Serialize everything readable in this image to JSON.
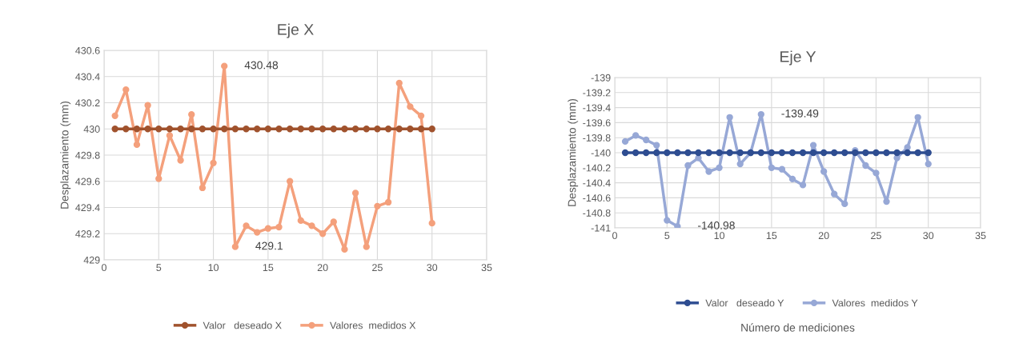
{
  "chart_data": [
    {
      "type": "line",
      "title": "Eje X",
      "ylabel": "Desplazamiento (mm)",
      "x": [
        1,
        2,
        3,
        4,
        5,
        6,
        7,
        8,
        9,
        10,
        11,
        12,
        13,
        14,
        15,
        16,
        17,
        18,
        19,
        20,
        21,
        22,
        23,
        24,
        25,
        26,
        27,
        28,
        29,
        30
      ],
      "series": [
        {
          "name": "Valor   deseado X",
          "color": "#a0522d",
          "values": [
            430,
            430,
            430,
            430,
            430,
            430,
            430,
            430,
            430,
            430,
            430,
            430,
            430,
            430,
            430,
            430,
            430,
            430,
            430,
            430,
            430,
            430,
            430,
            430,
            430,
            430,
            430,
            430,
            430,
            430
          ]
        },
        {
          "name": "Valores  medidos X",
          "color": "#f4a07c",
          "values": [
            430.1,
            430.3,
            429.88,
            430.18,
            429.62,
            429.95,
            429.76,
            430.11,
            429.55,
            429.74,
            430.48,
            429.1,
            429.26,
            429.21,
            429.24,
            429.25,
            429.6,
            429.3,
            429.26,
            429.2,
            429.29,
            429.08,
            429.51,
            429.1,
            429.41,
            429.44,
            430.35,
            430.17,
            430.1,
            429.28
          ]
        }
      ],
      "annotations": [
        {
          "text": "430.48",
          "x": 11,
          "y": 430.48
        },
        {
          "text": "429.1",
          "x": 12,
          "y": 429.1
        }
      ],
      "xlim": [
        0,
        35
      ],
      "xticks": [
        0,
        5,
        10,
        15,
        20,
        25,
        30,
        35
      ],
      "ylim": [
        429,
        430.6
      ],
      "yticks": [
        429,
        429.2,
        429.4,
        429.6,
        429.8,
        430,
        430.2,
        430.4,
        430.6
      ],
      "grid": true,
      "legend": "bottom",
      "marker": "circle",
      "line_style": "solid"
    },
    {
      "type": "line",
      "title": "Eje Y",
      "ylabel": "Desplazamiento (mm)",
      "xlabel": "Número de mediciones",
      "x": [
        1,
        2,
        3,
        4,
        5,
        6,
        7,
        8,
        9,
        10,
        11,
        12,
        13,
        14,
        15,
        16,
        17,
        18,
        19,
        20,
        21,
        22,
        23,
        24,
        25,
        26,
        27,
        28,
        29,
        30
      ],
      "series": [
        {
          "name": "Valor   deseado Y",
          "color": "#2e4d91",
          "values": [
            -140,
            -140,
            -140,
            -140,
            -140,
            -140,
            -140,
            -140,
            -140,
            -140,
            -140,
            -140,
            -140,
            -140,
            -140,
            -140,
            -140,
            -140,
            -140,
            -140,
            -140,
            -140,
            -140,
            -140,
            -140,
            -140,
            -140,
            -140,
            -140,
            -140
          ]
        },
        {
          "name": "Valores  medidos Y",
          "color": "#97a8d6",
          "values": [
            -139.85,
            -139.77,
            -139.83,
            -139.9,
            -140.9,
            -140.98,
            -140.17,
            -140.07,
            -140.25,
            -140.2,
            -139.53,
            -140.15,
            -140.0,
            -139.49,
            -140.2,
            -140.22,
            -140.35,
            -140.43,
            -139.9,
            -140.25,
            -140.55,
            -140.68,
            -139.97,
            -140.17,
            -140.27,
            -140.65,
            -140.07,
            -139.93,
            -139.53,
            -140.15
          ]
        }
      ],
      "annotations": [
        {
          "text": "-139.49",
          "x": 14,
          "y": -139.49
        },
        {
          "text": "-140.98",
          "x": 6,
          "y": -140.98
        }
      ],
      "xlim": [
        0,
        35
      ],
      "xticks": [
        0,
        5,
        10,
        15,
        20,
        25,
        30,
        35
      ],
      "ylim": [
        -141,
        -139
      ],
      "yticks": [
        -141,
        -140.8,
        -140.6,
        -140.4,
        -140.2,
        -140,
        -139.8,
        -139.6,
        -139.4,
        -139.2,
        -139
      ],
      "grid": true,
      "legend": "bottom",
      "marker": "circle",
      "line_style": "solid"
    }
  ]
}
